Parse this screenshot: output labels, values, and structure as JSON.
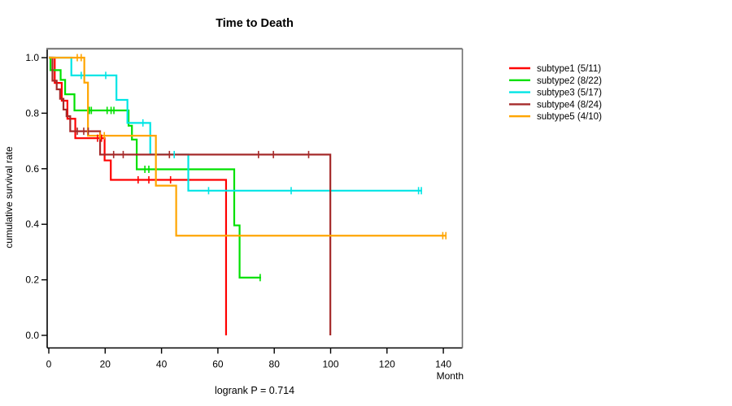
{
  "title": "Time to Death",
  "footer": "logrank P = 0.714",
  "x_axis": {
    "label": "Month",
    "ticks": [
      0,
      20,
      40,
      60,
      80,
      100,
      120,
      140
    ],
    "range": [
      0,
      146.8
    ]
  },
  "y_axis": {
    "label": "cumulative survival rate",
    "ticks": [
      "0.0",
      "0.2",
      "0.4",
      "0.6",
      "0.8",
      "1.0"
    ],
    "range": [
      0.0,
      1.0
    ]
  },
  "frame_colors": {
    "left": "#000000",
    "bottom": "#000000",
    "top": "#808080",
    "right": "#6e6e6e"
  },
  "chart_data": {
    "type": "line",
    "variant": "kaplan-meier-step",
    "title": "Time to Death",
    "xlabel": "Month",
    "ylabel": "cumulative survival rate",
    "xlim": [
      0,
      146.8
    ],
    "ylim": [
      0.0,
      1.0
    ],
    "grid": false,
    "legend_position": "right-outside",
    "series": [
      {
        "name": "subtype1",
        "legend_label": "subtype1 (5/11)",
        "color": "#FF0000",
        "start": [
          0,
          1.0
        ],
        "steps": [
          [
            2.1,
            0.909
          ],
          [
            4.6,
            0.845
          ],
          [
            6.6,
            0.78
          ],
          [
            9.4,
            0.71
          ],
          [
            19.8,
            0.63
          ],
          [
            22.0,
            0.56
          ],
          [
            62.9,
            0.0
          ]
        ],
        "censors": [
          [
            17.3,
            0.71
          ],
          [
            18.7,
            0.71
          ],
          [
            31.7,
            0.56
          ],
          [
            35.5,
            0.56
          ],
          [
            43.2,
            0.56
          ]
        ],
        "end_month": 62.9
      },
      {
        "name": "subtype2",
        "legend_label": "subtype2 (8/22)",
        "color": "#00E000",
        "start": [
          0,
          1.0
        ],
        "steps": [
          [
            0.6,
            0.955
          ],
          [
            4.2,
            0.92
          ],
          [
            5.8,
            0.868
          ],
          [
            9.1,
            0.81
          ],
          [
            28.3,
            0.755
          ],
          [
            29.5,
            0.705
          ],
          [
            31.2,
            0.598
          ],
          [
            65.8,
            0.396
          ],
          [
            67.7,
            0.208
          ]
        ],
        "censors": [
          [
            14.4,
            0.81
          ],
          [
            15.1,
            0.81
          ],
          [
            20.7,
            0.81
          ],
          [
            22.1,
            0.81
          ],
          [
            23.1,
            0.81
          ],
          [
            34.1,
            0.598
          ],
          [
            35.5,
            0.598
          ],
          [
            75.0,
            0.208
          ]
        ],
        "end_month": 75.3
      },
      {
        "name": "subtype3",
        "legend_label": "subtype3 (5/17)",
        "color": "#00E5E5",
        "start": [
          0,
          1.0
        ],
        "steps": [
          [
            8.0,
            0.936
          ],
          [
            24.0,
            0.848
          ],
          [
            27.9,
            0.765
          ],
          [
            36.0,
            0.651
          ],
          [
            49.5,
            0.521
          ]
        ],
        "censors": [
          [
            11.5,
            0.936
          ],
          [
            20.2,
            0.936
          ],
          [
            33.4,
            0.765
          ],
          [
            44.5,
            0.651
          ],
          [
            56.7,
            0.521
          ],
          [
            86.0,
            0.521
          ],
          [
            131.2,
            0.521
          ],
          [
            132.2,
            0.521
          ]
        ],
        "end_month": 132.4
      },
      {
        "name": "subtype4",
        "legend_label": "subtype4 (8/24)",
        "color": "#A52A2A",
        "start": [
          0,
          1.0
        ],
        "steps": [
          [
            1.3,
            0.917
          ],
          [
            2.8,
            0.886
          ],
          [
            4.0,
            0.852
          ],
          [
            5.2,
            0.813
          ],
          [
            6.3,
            0.789
          ],
          [
            7.6,
            0.735
          ],
          [
            18.2,
            0.651
          ],
          [
            99.9,
            0.0
          ]
        ],
        "censors": [
          [
            10.1,
            0.735
          ],
          [
            12.4,
            0.735
          ],
          [
            14.0,
            0.735
          ],
          [
            23.0,
            0.651
          ],
          [
            26.4,
            0.651
          ],
          [
            42.8,
            0.651
          ],
          [
            74.4,
            0.651
          ],
          [
            79.7,
            0.651
          ],
          [
            92.2,
            0.651
          ]
        ],
        "end_month": 99.9
      },
      {
        "name": "subtype5",
        "legend_label": "subtype5 (4/10)",
        "color": "#FFA500",
        "start": [
          0,
          1.0
        ],
        "steps": [
          [
            12.6,
            0.91
          ],
          [
            13.9,
            0.719
          ],
          [
            38.0,
            0.539
          ],
          [
            45.2,
            0.359
          ]
        ],
        "censors": [
          [
            10.1,
            1.0
          ],
          [
            11.5,
            1.0
          ],
          [
            18.2,
            0.719
          ],
          [
            19.7,
            0.719
          ],
          [
            139.8,
            0.359
          ],
          [
            140.9,
            0.359
          ]
        ],
        "end_month": 141.0
      }
    ]
  }
}
